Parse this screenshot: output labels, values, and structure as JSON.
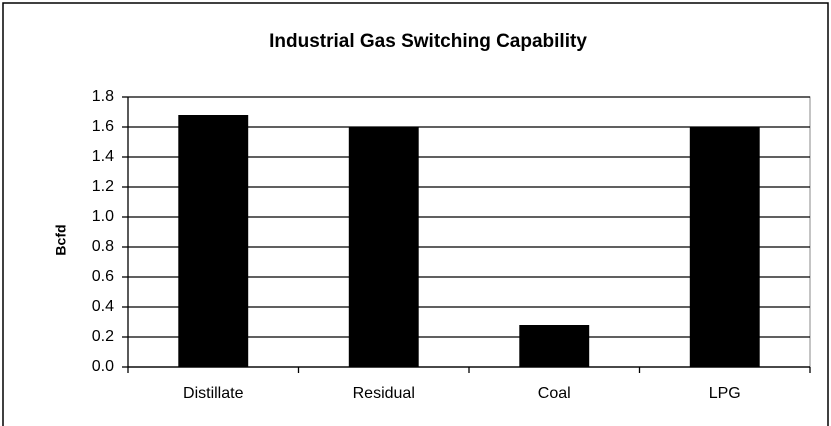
{
  "chart_data": {
    "type": "bar",
    "title": "Industrial Gas Switching Capability",
    "y_label": "Bcfd",
    "categories": [
      "Distillate",
      "Residual",
      "Coal",
      "LPG"
    ],
    "values": [
      1.68,
      1.6,
      0.28,
      1.6
    ],
    "color": "#000000",
    "ylim": [
      0,
      1.8
    ],
    "yticks": [
      {
        "value": 0,
        "label": "0.0"
      },
      0.2,
      0.4,
      0.6,
      0.8,
      {
        "value": 1,
        "label": "1.0"
      },
      1.2,
      1.4,
      1.6,
      1.8
    ],
    "grid": true
  }
}
